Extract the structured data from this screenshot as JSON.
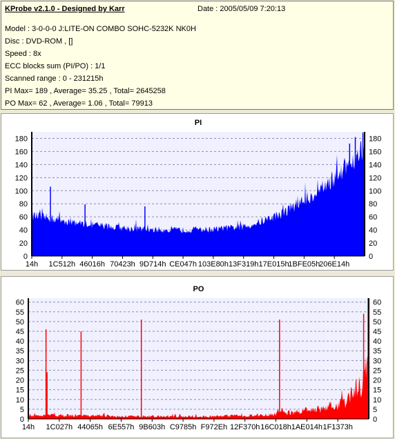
{
  "header": {
    "app_title": "KProbe v2.1.0 - Designed by Karr",
    "date_label": "Date : 2005/05/09 7:20:13",
    "lines": [
      "Model : 3-0-0-0 J:LITE-ON COMBO SOHC-5232K NK0H",
      "Disc : DVD-ROM ,  []",
      "Speed : 8x",
      "ECC blocks sum (PI/PO) : 1/1",
      "Scanned range : 0 - 231215h",
      "PI Max= 189 , Average= 35.25 , Total= 2645258",
      "PO Max= 62 , Average= 1.06 , Total= 79913"
    ]
  },
  "colors": {
    "pi_bar": "#0000ff",
    "po_bar": "#ff0000",
    "plot_bg": "#f0f0ff",
    "grid": "#8c8cb4"
  },
  "chart_data": [
    {
      "type": "bar",
      "title": "PI",
      "ylim": [
        0,
        190
      ],
      "yticks": [
        0,
        20,
        40,
        60,
        80,
        100,
        120,
        140,
        160,
        180
      ],
      "xlim": [
        0,
        231215
      ],
      "xtick_labels": [
        "14h",
        "1C512h",
        "46016h",
        "70423h",
        "9D714h",
        "CE047h",
        "103E80h",
        "13F319h",
        "17E015h",
        "1BFE05h",
        "206E14h"
      ],
      "grid": true,
      "profile": [
        [
          0.0,
          62
        ],
        [
          0.05,
          58
        ],
        [
          0.1,
          54
        ],
        [
          0.15,
          50
        ],
        [
          0.2,
          47
        ],
        [
          0.25,
          44
        ],
        [
          0.3,
          42
        ],
        [
          0.35,
          41
        ],
        [
          0.4,
          40
        ],
        [
          0.45,
          40
        ],
        [
          0.5,
          40
        ],
        [
          0.55,
          41
        ],
        [
          0.6,
          43
        ],
        [
          0.65,
          46
        ],
        [
          0.7,
          55
        ],
        [
          0.75,
          65
        ],
        [
          0.8,
          80
        ],
        [
          0.85,
          95
        ],
        [
          0.9,
          115
        ],
        [
          0.95,
          140
        ],
        [
          1.0,
          165
        ]
      ],
      "spikes": [
        {
          "x": 0.056,
          "y": 106
        },
        {
          "x": 0.16,
          "y": 79
        },
        {
          "x": 0.34,
          "y": 76
        },
        {
          "x": 0.955,
          "y": 172
        },
        {
          "x": 0.972,
          "y": 182
        },
        {
          "x": 0.995,
          "y": 189
        }
      ]
    },
    {
      "type": "bar",
      "title": "PO",
      "ylim": [
        0,
        62
      ],
      "yticks": [
        0,
        5,
        10,
        15,
        20,
        25,
        30,
        35,
        40,
        45,
        50,
        55,
        60
      ],
      "xlim": [
        0,
        231215
      ],
      "xtick_labels": [
        "14h",
        "1C027h",
        "44065h",
        "6E557h",
        "9B603h",
        "C9785h",
        "F972Eh",
        "12F370h",
        "16C018h",
        "1AE014h",
        "1F1373h"
      ],
      "grid": true,
      "profile": [
        [
          0.0,
          2
        ],
        [
          0.3,
          1.5
        ],
        [
          0.5,
          1.2
        ],
        [
          0.7,
          2
        ],
        [
          0.75,
          3
        ],
        [
          0.8,
          4
        ],
        [
          0.85,
          5
        ],
        [
          0.9,
          7
        ],
        [
          0.94,
          10
        ],
        [
          0.97,
          16
        ],
        [
          1.0,
          28
        ]
      ],
      "spikes": [
        {
          "x": 0.052,
          "y": 46
        },
        {
          "x": 0.055,
          "y": 24
        },
        {
          "x": 0.155,
          "y": 45
        },
        {
          "x": 0.332,
          "y": 51
        },
        {
          "x": 0.738,
          "y": 51
        },
        {
          "x": 0.985,
          "y": 54
        },
        {
          "x": 0.998,
          "y": 62
        }
      ]
    }
  ]
}
